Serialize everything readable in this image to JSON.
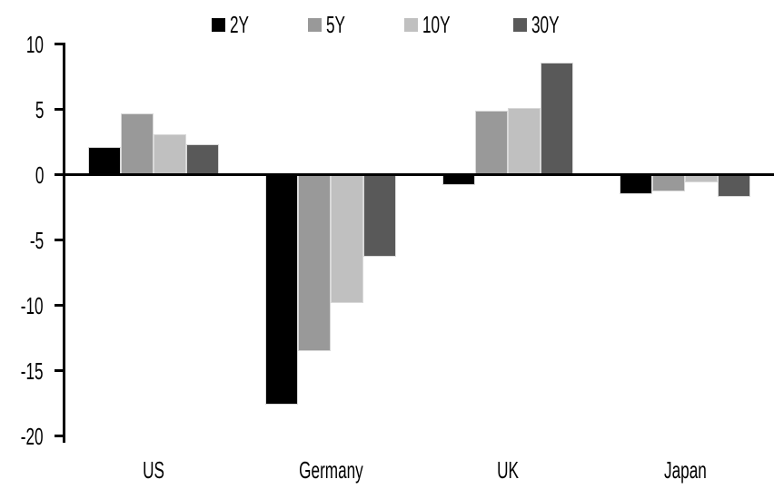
{
  "chart_data": {
    "type": "bar",
    "title": "",
    "categories": [
      "US",
      "Germany",
      "UK",
      "Japan"
    ],
    "series": [
      {
        "name": "2Y",
        "color": "#000000",
        "values": [
          2.1,
          -17.6,
          -0.8,
          -1.5
        ]
      },
      {
        "name": "5Y",
        "color": "#999999",
        "values": [
          4.7,
          -13.5,
          4.9,
          -1.3
        ]
      },
      {
        "name": "10Y",
        "color": "#c0c0c0",
        "values": [
          3.1,
          -9.8,
          5.1,
          -0.6
        ]
      },
      {
        "name": "30Y",
        "color": "#595959",
        "values": [
          2.3,
          -6.3,
          8.6,
          -1.7
        ]
      }
    ],
    "ylim": [
      -20,
      10
    ],
    "yticks": [
      10,
      5,
      0,
      -5,
      -10,
      -15,
      -20
    ],
    "xlabel": "",
    "ylabel": "",
    "legend_position": "top-center",
    "grid": false,
    "axis_color": "#000000",
    "background_color": "#ffffff"
  }
}
